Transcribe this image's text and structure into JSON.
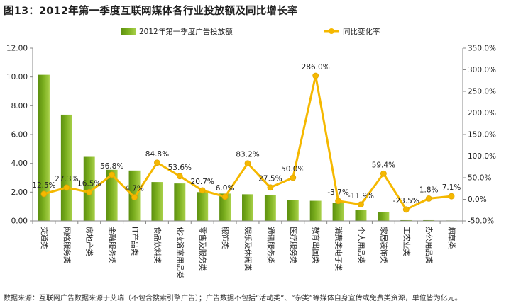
{
  "chart_data": {
    "type": "bar",
    "title": "图13：2012年第一季度互联网媒体各行业投放额及同比增长率",
    "categories": [
      "交通类",
      "网络服务类",
      "房地产类",
      "金融服务类",
      "IT产品类",
      "食品饮料类",
      "化妆浴室用品类",
      "零售及服务类",
      "服饰类",
      "娱乐及休闲类",
      "通讯服务类",
      "医疗服务类",
      "教育出国类",
      "消费类电子类",
      "个人用品类",
      "家居装饰类",
      "工农业类",
      "办公用品类",
      "烟草类"
    ],
    "series": [
      {
        "name": "2012年第一季度广告投放额",
        "type": "bar",
        "axis": "left",
        "color": "#7aae1e",
        "values": [
          10.15,
          7.38,
          4.45,
          3.55,
          3.5,
          2.7,
          2.6,
          2.0,
          1.9,
          1.85,
          1.82,
          1.45,
          1.4,
          1.25,
          0.78,
          0.62,
          0.05,
          0.05,
          0.03
        ]
      },
      {
        "name": "同比变化率",
        "type": "line",
        "axis": "right",
        "color": "#f5b800",
        "values": [
          12.5,
          27.3,
          16.5,
          56.8,
          4.7,
          84.8,
          53.6,
          20.7,
          6.0,
          83.2,
          27.5,
          50.0,
          286.0,
          -3.7,
          -11.9,
          59.4,
          -23.5,
          1.8,
          7.1
        ],
        "labels": [
          "12.5%",
          "27.3%",
          "16.5%",
          "56.8%",
          "4.7%",
          "84.8%",
          "53.6%",
          "20.7%",
          "6.0%",
          "83.2%",
          "27.5%",
          "50.0%",
          "286.0%",
          "-3.7%",
          "-11.9%",
          "59.4%",
          "-23.5%",
          "1.8%",
          "7.1%"
        ]
      }
    ],
    "ylim_left": [
      0,
      12
    ],
    "yticks_left": [
      "0.00",
      "2.00",
      "4.00",
      "6.00",
      "8.00",
      "10.00",
      "12.00"
    ],
    "ylim_right": [
      -50,
      350
    ],
    "yticks_right": [
      "-50.0%",
      "0.0%",
      "50.0%",
      "100.0%",
      "150.0%",
      "200.0%",
      "250.0%",
      "300.0%",
      "350.0%"
    ],
    "legend_position": "top",
    "grid": false
  },
  "source_note": "数据来源：互联网广告数据来源于艾瑞（不包含搜索引擎广告）；广告数据不包括“活动类”、“杂类”等媒体自身宣传或免费类资源，单位皆为亿元。"
}
